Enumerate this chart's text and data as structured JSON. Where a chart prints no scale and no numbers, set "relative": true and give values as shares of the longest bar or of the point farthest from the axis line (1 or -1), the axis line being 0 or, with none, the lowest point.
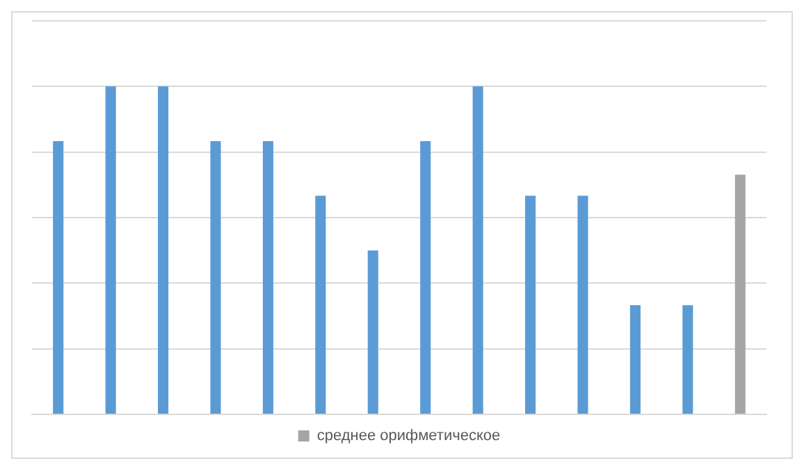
{
  "chart_data": {
    "type": "bar",
    "relative": true,
    "stacked": true,
    "categories": [
      null,
      null,
      null,
      null,
      null,
      null,
      null,
      null,
      null,
      null,
      null,
      null,
      null,
      null
    ],
    "series": [
      {
        "color": "#5b9bd5",
        "values": [
          0.833,
          1,
          1,
          0.833,
          0.833,
          0.667,
          0.5,
          0.833,
          1,
          0.667,
          0.667,
          0.333,
          0.333,
          null
        ]
      },
      {
        "name": "среднее орифметическое",
        "color": "#a5a5a5",
        "values": [
          null,
          null,
          null,
          null,
          null,
          null,
          null,
          null,
          null,
          null,
          null,
          null,
          null,
          0.731
        ]
      }
    ],
    "grid": "y",
    "legend": "bottom"
  }
}
